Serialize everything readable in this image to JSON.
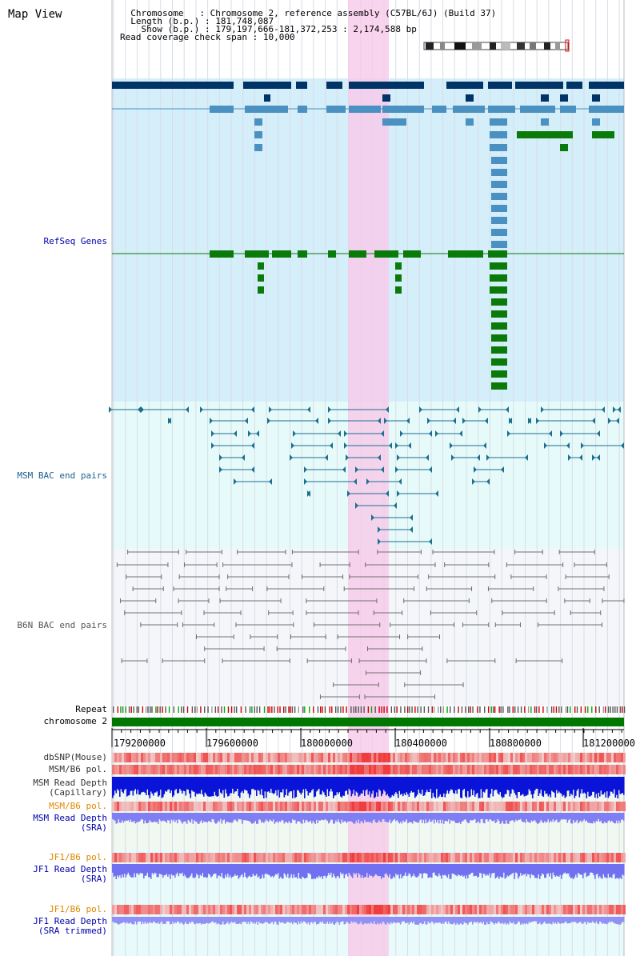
{
  "header": {
    "view_title": "Map View",
    "chromosome_label": "Chromosome",
    "chromosome_value": "Chromosome 2, reference assembly (C57BL/6J) (Build 37)",
    "length_label": "Length (b.p.)",
    "length_value": "181,748,087",
    "show_label": "Show (b.p.)",
    "show_value": "179,197,666-181,372,253 : 2,174,588 bp",
    "coverage_label": "Read coverage check span",
    "coverage_value": "10,000"
  },
  "tracks": {
    "refseq": "RefSeq Genes",
    "msm_bac": "MSM BAC end pairs",
    "b6n_bac": "B6N BAC end pairs",
    "repeat": "Repeat",
    "chromosome": "chromosome 2",
    "dbsnp": "dbSNP(Mouse)",
    "msm_b6_pol_1": "MSM/B6 pol.",
    "msm_read_depth_cap_1": "MSM Read Depth",
    "msm_read_depth_cap_2": "(Capillary)",
    "msm_b6_pol_2": "MSM/B6 pol.",
    "msm_read_depth_sra_1": "MSM Read Depth",
    "msm_read_depth_sra_2": "(SRA)",
    "jf1_b6_pol_1": "JF1/B6 pol.",
    "jf1_read_depth_sra_1": "JF1 Read Depth",
    "jf1_read_depth_sra_2": "(SRA)",
    "jf1_b6_pol_2": "JF1/B6 pol.",
    "jf1_read_depth_trim_1": "JF1 Read Depth",
    "jf1_read_depth_trim_2": "(SRA trimmed)"
  },
  "axis": {
    "ticks": [
      "179200000",
      "179600000",
      "180000000",
      "180400000",
      "180800000",
      "181200000"
    ]
  },
  "colors": {
    "refseq_bg": "#d4eefa",
    "msm_bg": "#e6fafa",
    "b6n_bg": "#f4f6f9",
    "highlight": "#f7d6ef",
    "gene_navy": "#003366",
    "gene_blue": "#4a90c0",
    "gene_green": "#0a7a0a",
    "msm_line": "#1b6f8f",
    "b6n_line": "#707070",
    "label_blue": "#0000aa",
    "label_orange": "#dd8800",
    "chromosome_green": "#007700"
  }
}
